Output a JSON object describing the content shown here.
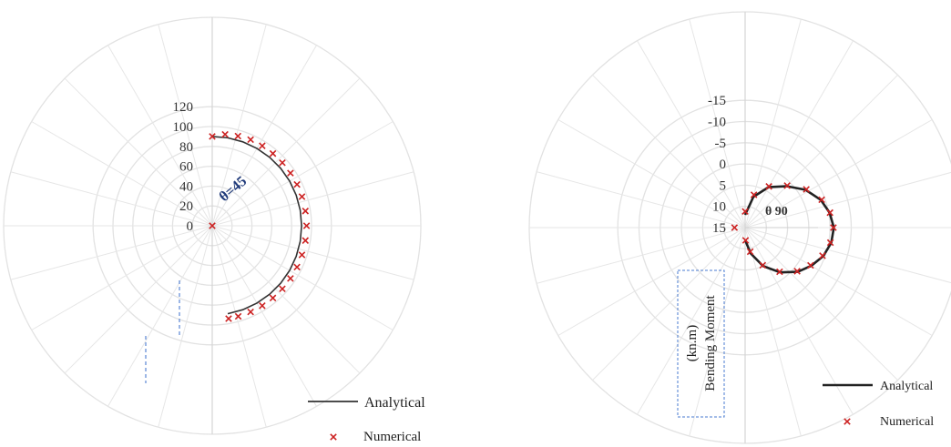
{
  "chart_data": [
    {
      "type": "polar",
      "r_ticks": [
        "0",
        "20",
        "40",
        "60",
        "80",
        "100",
        "120"
      ],
      "rlim": [
        0,
        120
      ],
      "annotation": "θ=45",
      "legend": {
        "placement": "bottom-right",
        "entries": [
          "Analytical",
          "Numerical"
        ]
      },
      "series": [
        {
          "name": "Analytical",
          "style": "line",
          "color": "#333333",
          "points": [
            {
              "theta": 90,
              "r": 90
            },
            {
              "theta": 80,
              "r": 90
            },
            {
              "theta": 70,
              "r": 90
            },
            {
              "theta": 60,
              "r": 90
            },
            {
              "theta": 50,
              "r": 90
            },
            {
              "theta": 40,
              "r": 90
            },
            {
              "theta": 30,
              "r": 90
            },
            {
              "theta": 20,
              "r": 90
            },
            {
              "theta": 10,
              "r": 90
            },
            {
              "theta": 0,
              "r": 90
            },
            {
              "theta": -10,
              "r": 90
            },
            {
              "theta": -20,
              "r": 90
            },
            {
              "theta": -30,
              "r": 90
            },
            {
              "theta": -40,
              "r": 90
            },
            {
              "theta": -50,
              "r": 90
            },
            {
              "theta": -60,
              "r": 90
            },
            {
              "theta": -70,
              "r": 90
            },
            {
              "theta": -80,
              "r": 90
            }
          ]
        },
        {
          "name": "Numerical",
          "style": "marker",
          "color": "#cc2222",
          "points": [
            {
              "theta": 0,
              "r": 0
            },
            {
              "theta": 90,
              "r": 90
            },
            {
              "theta": 82,
              "r": 93
            },
            {
              "theta": 74,
              "r": 94
            },
            {
              "theta": 66,
              "r": 95
            },
            {
              "theta": 58,
              "r": 95
            },
            {
              "theta": 50,
              "r": 95
            },
            {
              "theta": 42,
              "r": 95
            },
            {
              "theta": 34,
              "r": 95
            },
            {
              "theta": 26,
              "r": 95
            },
            {
              "theta": 18,
              "r": 95
            },
            {
              "theta": 9,
              "r": 95
            },
            {
              "theta": 0,
              "r": 95
            },
            {
              "theta": -9,
              "r": 95
            },
            {
              "theta": -18,
              "r": 95
            },
            {
              "theta": -26,
              "r": 95
            },
            {
              "theta": -34,
              "r": 95
            },
            {
              "theta": -42,
              "r": 95
            },
            {
              "theta": -50,
              "r": 95
            },
            {
              "theta": -58,
              "r": 95
            },
            {
              "theta": -66,
              "r": 95
            },
            {
              "theta": -74,
              "r": 95
            },
            {
              "theta": -80,
              "r": 95
            }
          ]
        }
      ]
    },
    {
      "type": "polar",
      "r_ticks": [
        "-15",
        "-10",
        "-5",
        "0",
        "5",
        "10",
        "15"
      ],
      "rlim": [
        15,
        -15
      ],
      "annotation": "θ  90",
      "ylabel": "Bending Moment",
      "ylabel_unit": "(kn.m)",
      "legend": {
        "placement": "bottom-right",
        "entries": [
          "Analytical",
          "Numerical"
        ]
      },
      "series": [
        {
          "name": "Analytical",
          "style": "line",
          "color": "#222222",
          "points": [
            {
              "theta": 90,
              "r": 12.0
            },
            {
              "theta": 75,
              "r": 7.5
            },
            {
              "theta": 60,
              "r": 4.0
            },
            {
              "theta": 45,
              "r": 1.2
            },
            {
              "theta": 32,
              "r": -1.8
            },
            {
              "theta": 20,
              "r": -4.0
            },
            {
              "theta": 10,
              "r": -5.2
            },
            {
              "theta": 0,
              "r": -5.9
            },
            {
              "theta": -10,
              "r": -5.6
            },
            {
              "theta": -20,
              "r": -4.6
            },
            {
              "theta": -30,
              "r": -3.0
            },
            {
              "theta": -40,
              "r": -1.2
            },
            {
              "theta": -52,
              "r": 1.6
            },
            {
              "theta": -65,
              "r": 5.0
            },
            {
              "theta": -78,
              "r": 8.8
            },
            {
              "theta": -88,
              "r": 11.8
            }
          ]
        },
        {
          "name": "Numerical",
          "style": "marker",
          "color": "#cc2222",
          "points": [
            {
              "theta": 180,
              "r": 12.5
            },
            {
              "theta": 90,
              "r": 11.2
            },
            {
              "theta": 75,
              "r": 7.0
            },
            {
              "theta": 60,
              "r": 3.8
            },
            {
              "theta": 45,
              "r": 1.0
            },
            {
              "theta": 32,
              "r": -2.0
            },
            {
              "theta": 20,
              "r": -4.2
            },
            {
              "theta": 10,
              "r": -5.3
            },
            {
              "theta": 0,
              "r": -5.8
            },
            {
              "theta": -10,
              "r": -5.4
            },
            {
              "theta": -20,
              "r": -4.4
            },
            {
              "theta": -30,
              "r": -2.8
            },
            {
              "theta": -40,
              "r": -1.0
            },
            {
              "theta": -52,
              "r": 1.8
            },
            {
              "theta": -65,
              "r": 5.2
            },
            {
              "theta": -78,
              "r": 9.2
            },
            {
              "theta": -88,
              "r": 12.0
            }
          ]
        }
      ]
    }
  ]
}
